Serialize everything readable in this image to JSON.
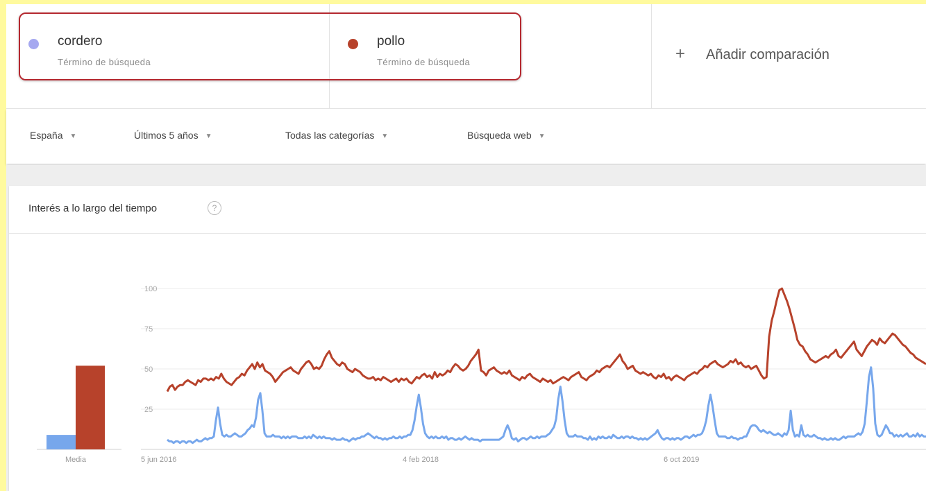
{
  "terms": [
    {
      "name": "cordero",
      "subtitle": "Término de búsqueda",
      "color": "#a5a8f0"
    },
    {
      "name": "pollo",
      "subtitle": "Término de búsqueda",
      "color": "#b7422b"
    }
  ],
  "add_comparison": {
    "icon": "plus-icon",
    "label": "Añadir comparación"
  },
  "filters": [
    {
      "label": "España"
    },
    {
      "label": "Últimos 5 años"
    },
    {
      "label": "Todas las categorías"
    },
    {
      "label": "Búsqueda web"
    }
  ],
  "card": {
    "title": "Interés a lo largo del tiempo",
    "help_icon": "help-icon"
  },
  "chart_data": {
    "type": "line",
    "y_ticks": [
      "100",
      "75",
      "50",
      "25"
    ],
    "ylim": [
      0,
      100
    ],
    "x_ticks": [
      "5 jun 2016",
      "4 feb 2018",
      "6 oct 2019"
    ],
    "average": {
      "label": "Media",
      "bars": [
        {
          "series": "cordero",
          "value": 9,
          "color": "#77a7ec"
        },
        {
          "series": "pollo",
          "value": 52,
          "color": "#b7422b"
        }
      ]
    },
    "series": [
      {
        "name": "cordero",
        "color": "#77a7ec",
        "values": [
          6,
          5,
          5,
          4,
          5,
          5,
          4,
          5,
          5,
          4,
          5,
          5,
          4,
          5,
          6,
          5,
          5,
          6,
          7,
          6,
          7,
          7,
          8,
          18,
          26,
          16,
          9,
          8,
          9,
          8,
          8,
          9,
          10,
          9,
          8,
          8,
          9,
          10,
          12,
          13,
          15,
          14,
          20,
          31,
          35,
          24,
          10,
          8,
          8,
          8,
          9,
          8,
          8,
          8,
          7,
          8,
          7,
          8,
          7,
          8,
          8,
          8,
          7,
          7,
          7,
          8,
          7,
          8,
          7,
          9,
          8,
          7,
          8,
          7,
          8,
          7,
          7,
          7,
          6,
          7,
          6,
          6,
          6,
          7,
          6,
          6,
          5,
          6,
          7,
          6,
          7,
          7,
          8,
          8,
          9,
          10,
          9,
          8,
          7,
          8,
          7,
          7,
          6,
          7,
          6,
          7,
          7,
          8,
          7,
          7,
          8,
          7,
          8,
          8,
          9,
          9,
          12,
          18,
          27,
          34,
          26,
          16,
          10,
          8,
          7,
          8,
          7,
          8,
          7,
          7,
          8,
          7,
          8,
          6,
          7,
          7,
          6,
          6,
          7,
          6,
          7,
          8,
          7,
          6,
          7,
          6,
          6,
          6,
          5,
          6,
          6,
          6,
          6,
          6,
          6,
          6,
          6,
          6,
          7,
          8,
          12,
          15,
          12,
          7,
          6,
          7,
          5,
          6,
          7,
          7,
          6,
          7,
          8,
          7,
          7,
          8,
          7,
          8,
          8,
          8,
          9,
          10,
          12,
          14,
          19,
          31,
          39,
          30,
          18,
          10,
          8,
          8,
          8,
          9,
          8,
          8,
          8,
          7,
          7,
          6,
          8,
          6,
          7,
          6,
          8,
          7,
          8,
          7,
          7,
          8,
          7,
          9,
          8,
          7,
          7,
          8,
          7,
          8,
          8,
          7,
          8,
          7,
          7,
          6,
          7,
          6,
          7,
          6,
          7,
          8,
          9,
          10,
          12,
          9,
          7,
          6,
          7,
          7,
          6,
          7,
          6,
          7,
          7,
          6,
          7,
          8,
          8,
          7,
          8,
          9,
          8,
          9,
          9,
          10,
          13,
          18,
          27,
          34,
          27,
          18,
          10,
          8,
          8,
          8,
          8,
          7,
          7,
          8,
          7,
          7,
          6,
          7,
          7,
          8,
          8,
          11,
          14,
          15,
          15,
          14,
          12,
          11,
          12,
          11,
          10,
          11,
          10,
          9,
          9,
          10,
          9,
          8,
          10,
          9,
          12,
          24,
          12,
          8,
          9,
          8,
          15,
          9,
          8,
          9,
          8,
          8,
          9,
          8,
          7,
          7,
          6,
          7,
          6,
          6,
          7,
          6,
          7,
          6,
          6,
          7,
          8,
          7,
          8,
          8,
          8,
          8,
          9,
          10,
          9,
          11,
          16,
          30,
          45,
          51,
          38,
          16,
          9,
          8,
          9,
          12,
          15,
          13,
          10,
          10,
          8,
          9,
          8,
          9,
          8,
          9,
          10,
          8,
          8,
          9,
          8,
          10,
          8,
          9,
          8,
          8
        ]
      },
      {
        "name": "pollo",
        "color": "#b7422b",
        "values": [
          36,
          39,
          40,
          37,
          39,
          40,
          40,
          42,
          43,
          42,
          41,
          40,
          43,
          42,
          44,
          44,
          43,
          44,
          43,
          45,
          44,
          47,
          44,
          42,
          41,
          40,
          42,
          44,
          45,
          47,
          46,
          49,
          51,
          53,
          50,
          54,
          51,
          53,
          49,
          48,
          47,
          45,
          42,
          44,
          46,
          48,
          49,
          50,
          51,
          49,
          48,
          47,
          50,
          52,
          54,
          55,
          53,
          50,
          51,
          50,
          52,
          56,
          59,
          61,
          57,
          55,
          53,
          52,
          54,
          53,
          50,
          49,
          48,
          50,
          49,
          48,
          46,
          45,
          44,
          44,
          45,
          43,
          44,
          43,
          45,
          44,
          43,
          42,
          43,
          44,
          42,
          44,
          43,
          44,
          42,
          41,
          43,
          45,
          44,
          46,
          47,
          45,
          46,
          44,
          48,
          45,
          47,
          46,
          47,
          49,
          48,
          51,
          53,
          52,
          50,
          49,
          50,
          52,
          55,
          57,
          59,
          62,
          49,
          48,
          46,
          49,
          50,
          51,
          49,
          48,
          47,
          48,
          47,
          49,
          46,
          45,
          44,
          43,
          45,
          44,
          46,
          47,
          45,
          44,
          43,
          42,
          44,
          43,
          42,
          43,
          41,
          42,
          43,
          44,
          45,
          44,
          43,
          45,
          46,
          47,
          48,
          45,
          44,
          43,
          45,
          46,
          47,
          49,
          48,
          50,
          51,
          52,
          51,
          53,
          55,
          57,
          59,
          55,
          53,
          50,
          51,
          52,
          49,
          48,
          47,
          48,
          47,
          46,
          47,
          45,
          44,
          46,
          45,
          47,
          44,
          45,
          43,
          45,
          46,
          45,
          44,
          43,
          45,
          46,
          47,
          48,
          47,
          49,
          50,
          52,
          51,
          53,
          54,
          55,
          53,
          52,
          51,
          52,
          53,
          55,
          54,
          56,
          53,
          54,
          52,
          51,
          52,
          50,
          51,
          52,
          49,
          46,
          44,
          45,
          70,
          80,
          86,
          93,
          99,
          100,
          96,
          92,
          87,
          81,
          75,
          68,
          65,
          64,
          61,
          59,
          56,
          55,
          54,
          55,
          56,
          57,
          58,
          57,
          59,
          60,
          62,
          58,
          57,
          59,
          61,
          63,
          65,
          67,
          62,
          60,
          58,
          61,
          64,
          66,
          68,
          67,
          65,
          69,
          67,
          66,
          68,
          70,
          72,
          71,
          69,
          67,
          65,
          64,
          62,
          60,
          59,
          57,
          56,
          55,
          54,
          53
        ]
      }
    ]
  }
}
